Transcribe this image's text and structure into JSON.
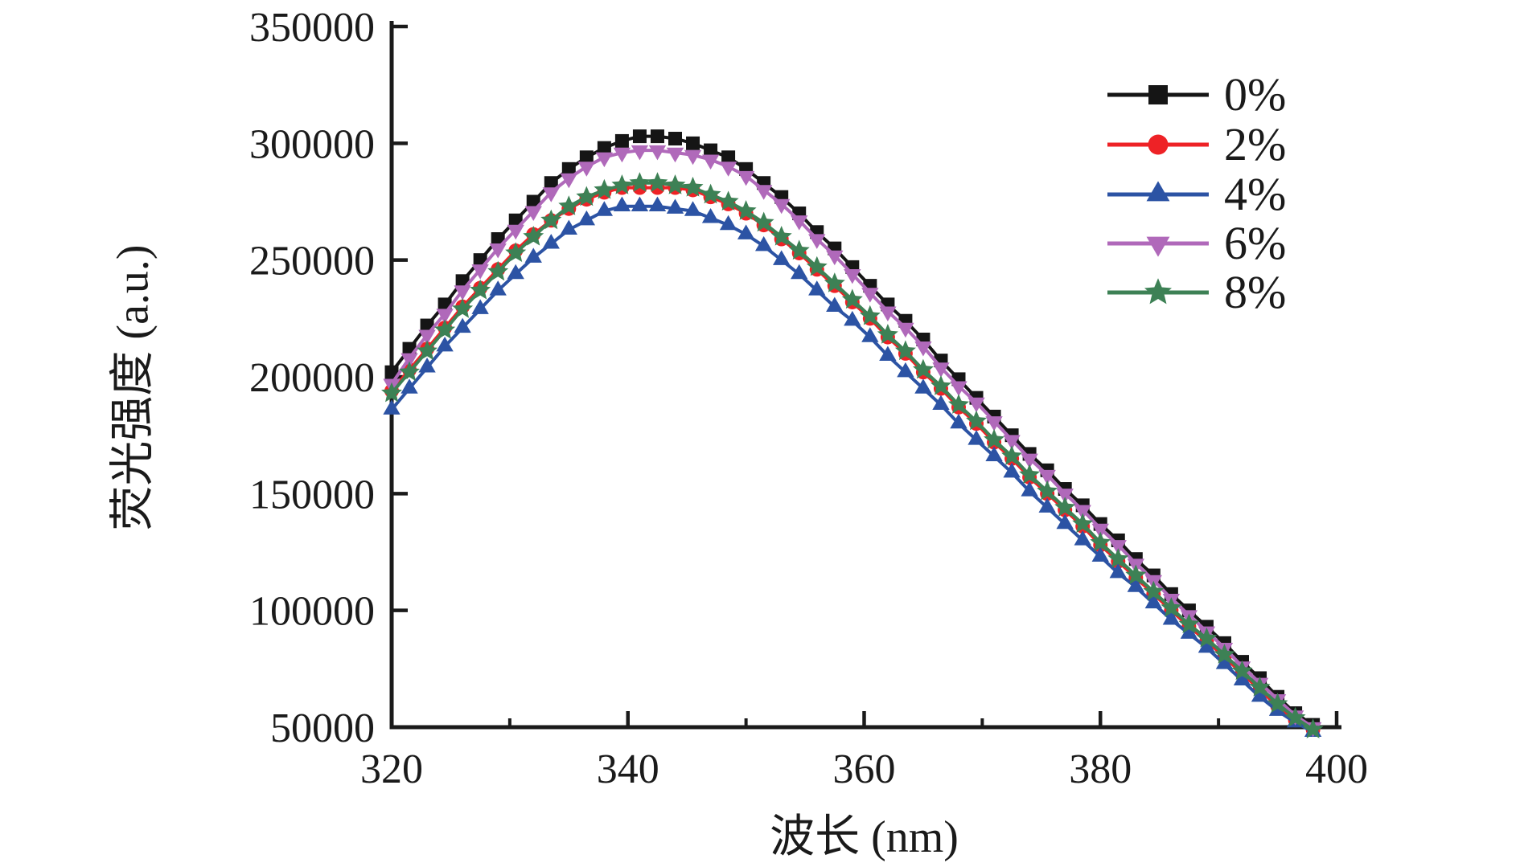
{
  "figure": {
    "background": "#ffffff",
    "axis_color": "#1a1a1a",
    "text_color": "#1a1a1a"
  },
  "legend": {
    "position": "top-right",
    "items": [
      {
        "label": "0%",
        "marker": "square",
        "color": "#151515"
      },
      {
        "label": "2%",
        "marker": "circle",
        "color": "#ee2226"
      },
      {
        "label": "4%",
        "marker": "triangle-up",
        "color": "#2c53a4"
      },
      {
        "label": "6%",
        "marker": "triangle-down",
        "color": "#b069ba"
      },
      {
        "label": "8%",
        "marker": "star",
        "color": "#3d8155"
      }
    ]
  },
  "chart_data": {
    "type": "line",
    "title": "",
    "xlabel": "波长 (nm)",
    "ylabel": "荧光强度 (a.u.)",
    "xlim": [
      320,
      400
    ],
    "ylim": [
      50000,
      350000
    ],
    "grid": false,
    "legend_position": "top-right",
    "x_major_ticks": [
      320,
      340,
      360,
      380,
      400
    ],
    "x_minor_ticks": [
      330,
      350,
      370,
      390
    ],
    "y_major_ticks": [
      50000,
      100000,
      150000,
      200000,
      250000,
      300000,
      350000
    ],
    "x_tick_labels": [
      "320",
      "340",
      "360",
      "380",
      "400"
    ],
    "y_tick_labels": [
      "50000",
      "100000",
      "150000",
      "200000",
      "250000",
      "300000",
      "350000"
    ],
    "x": [
      320,
      321.5,
      323,
      324.5,
      326,
      327.5,
      329,
      330.5,
      332,
      333.5,
      335,
      336.5,
      338,
      339.5,
      341,
      342.5,
      344,
      345.5,
      347,
      348.5,
      350,
      351.5,
      353,
      354.5,
      356,
      357.5,
      359,
      360.5,
      362,
      363.5,
      365,
      366.5,
      368,
      369.5,
      371,
      372.5,
      374,
      375.5,
      377,
      378.5,
      380,
      381.5,
      383,
      384.5,
      386,
      387.5,
      389,
      390.5,
      392,
      393.5,
      395,
      396.5,
      398
    ],
    "series": [
      {
        "name": "0%",
        "color": "#151515",
        "marker": "square",
        "values": [
          202000,
          212000,
          222000,
          231000,
          241000,
          250000,
          259000,
          267000,
          275000,
          283000,
          289000,
          294000,
          298000,
          301000,
          303000,
          303000,
          302000,
          300000,
          297000,
          294000,
          289000,
          283000,
          277000,
          270000,
          262000,
          255000,
          247000,
          239000,
          231000,
          224000,
          216000,
          207000,
          199000,
          191000,
          183000,
          175000,
          167000,
          160000,
          152000,
          145000,
          137000,
          130000,
          122000,
          115000,
          107000,
          100000,
          93000,
          86000,
          78000,
          71000,
          63000,
          56000,
          51000
        ]
      },
      {
        "name": "2%",
        "color": "#ee2226",
        "marker": "circle",
        "values": [
          194000,
          203000,
          212000,
          221000,
          230000,
          238000,
          246000,
          254000,
          261000,
          267000,
          272000,
          276000,
          279000,
          281000,
          281000,
          281000,
          281000,
          280000,
          277000,
          274000,
          270000,
          265000,
          259000,
          253000,
          246000,
          239000,
          232000,
          225000,
          217000,
          210000,
          202000,
          195000,
          187000,
          180000,
          172000,
          165000,
          157000,
          150000,
          143000,
          136000,
          128000,
          121000,
          114000,
          107000,
          100000,
          93000,
          87000,
          80000,
          73000,
          66000,
          59000,
          53000,
          49000
        ]
      },
      {
        "name": "4%",
        "color": "#2c53a4",
        "marker": "triangle-up",
        "values": [
          186000,
          195000,
          204000,
          213000,
          221000,
          229000,
          237000,
          244000,
          251000,
          257000,
          263000,
          267000,
          271000,
          273000,
          273000,
          273000,
          272000,
          271000,
          268000,
          265000,
          261000,
          256000,
          250000,
          244000,
          237000,
          230000,
          224000,
          217000,
          209000,
          202000,
          195000,
          188000,
          180000,
          173000,
          166000,
          159000,
          151000,
          144000,
          137000,
          130000,
          123000,
          116000,
          110000,
          103000,
          96000,
          90000,
          84000,
          77000,
          70000,
          63000,
          57000,
          52000,
          48000
        ]
      },
      {
        "name": "6%",
        "color": "#b069ba",
        "marker": "triangle-down",
        "values": [
          197000,
          208000,
          218000,
          227000,
          237000,
          246000,
          255000,
          263000,
          271000,
          279000,
          285000,
          290000,
          294000,
          296000,
          297000,
          297000,
          296000,
          295000,
          293000,
          290000,
          286000,
          280000,
          274000,
          267000,
          259000,
          252000,
          244000,
          236000,
          228000,
          221000,
          213000,
          204000,
          196000,
          189000,
          181000,
          173000,
          165000,
          158000,
          150000,
          143000,
          135000,
          128000,
          120000,
          113000,
          105000,
          98000,
          91000,
          84000,
          76000,
          69000,
          62000,
          55000,
          50000
        ]
      },
      {
        "name": "8%",
        "color": "#3d8155",
        "marker": "star",
        "values": [
          193000,
          202000,
          211000,
          220000,
          229000,
          237000,
          245000,
          253000,
          260000,
          267000,
          273000,
          277000,
          280000,
          282000,
          283000,
          283000,
          282000,
          281000,
          278000,
          275000,
          271000,
          266000,
          260000,
          254000,
          247000,
          240000,
          233000,
          226000,
          218000,
          211000,
          203000,
          196000,
          188000,
          181000,
          173000,
          166000,
          158000,
          151000,
          144000,
          137000,
          129000,
          122000,
          115000,
          108000,
          101000,
          94000,
          88000,
          81000,
          74000,
          67000,
          60000,
          54000,
          49000
        ]
      }
    ]
  }
}
